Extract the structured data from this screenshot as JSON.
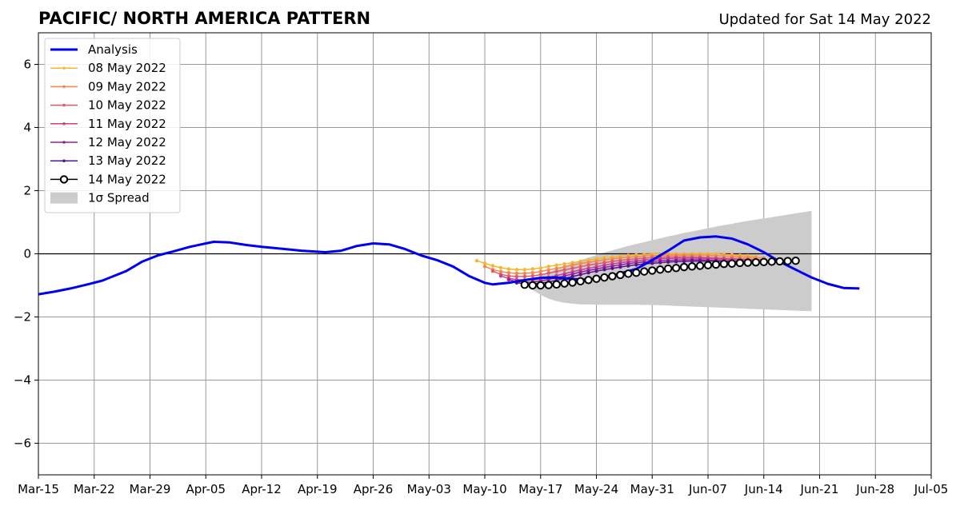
{
  "chart_data": {
    "type": "line",
    "title": "PACIFIC/ NORTH AMERICA PATTERN",
    "subtitle": "Updated for Sat 14 May 2022",
    "xlabel": "",
    "ylabel": "",
    "xlim": [
      "2022-03-15",
      "2022-07-05"
    ],
    "ylim": [
      -7,
      7
    ],
    "x_ticks": [
      "Mar-15",
      "Mar-22",
      "Mar-29",
      "Apr-05",
      "Apr-12",
      "Apr-19",
      "Apr-26",
      "May-03",
      "May-10",
      "May-17",
      "May-24",
      "May-31",
      "Jun-07",
      "Jun-14",
      "Jun-21",
      "Jun-28",
      "Jul-05"
    ],
    "y_ticks": [
      6,
      4,
      2,
      0,
      -2,
      -4,
      -6
    ],
    "y_tick_labels": [
      "6",
      "4",
      "2",
      "0",
      "−2",
      "−4",
      "−6"
    ],
    "grid": true,
    "zero_line": true,
    "legend_position": "top-left",
    "analysis": {
      "name": "Analysis",
      "color": "#0000ee",
      "points": [
        [
          "2022-03-15",
          -1.28
        ],
        [
          "2022-03-17",
          -1.2
        ],
        [
          "2022-03-19",
          -1.1
        ],
        [
          "2022-03-21",
          -0.98
        ],
        [
          "2022-03-23",
          -0.85
        ],
        [
          "2022-03-24",
          -0.75
        ],
        [
          "2022-03-26",
          -0.55
        ],
        [
          "2022-03-27",
          -0.4
        ],
        [
          "2022-03-28",
          -0.25
        ],
        [
          "2022-03-30",
          -0.05
        ],
        [
          "2022-04-01",
          0.08
        ],
        [
          "2022-04-03",
          0.22
        ],
        [
          "2022-04-05",
          0.33
        ],
        [
          "2022-04-06",
          0.38
        ],
        [
          "2022-04-08",
          0.36
        ],
        [
          "2022-04-10",
          0.28
        ],
        [
          "2022-04-12",
          0.22
        ],
        [
          "2022-04-15",
          0.15
        ],
        [
          "2022-04-17",
          0.1
        ],
        [
          "2022-04-20",
          0.05
        ],
        [
          "2022-04-22",
          0.1
        ],
        [
          "2022-04-24",
          0.25
        ],
        [
          "2022-04-26",
          0.33
        ],
        [
          "2022-04-28",
          0.3
        ],
        [
          "2022-04-30",
          0.15
        ],
        [
          "2022-05-02",
          -0.05
        ],
        [
          "2022-05-04",
          -0.2
        ],
        [
          "2022-05-06",
          -0.4
        ],
        [
          "2022-05-08",
          -0.7
        ],
        [
          "2022-05-10",
          -0.92
        ],
        [
          "2022-05-11",
          -0.97
        ],
        [
          "2022-05-13",
          -0.92
        ],
        [
          "2022-05-15",
          -0.83
        ],
        [
          "2022-05-17",
          -0.76
        ],
        [
          "2022-05-19",
          -0.75
        ],
        [
          "2022-05-21",
          -0.8
        ],
        [
          "2022-05-23",
          -0.82
        ],
        [
          "2022-05-25",
          -0.75
        ],
        [
          "2022-05-27",
          -0.62
        ],
        [
          "2022-05-29",
          -0.48
        ],
        [
          "2022-05-31",
          -0.2
        ],
        [
          "2022-06-02",
          0.1
        ],
        [
          "2022-06-04",
          0.42
        ],
        [
          "2022-06-06",
          0.52
        ],
        [
          "2022-06-08",
          0.55
        ],
        [
          "2022-06-10",
          0.48
        ],
        [
          "2022-06-12",
          0.3
        ],
        [
          "2022-06-14",
          0.05
        ],
        [
          "2022-06-16",
          -0.25
        ],
        [
          "2022-06-18",
          -0.5
        ],
        [
          "2022-06-20",
          -0.75
        ],
        [
          "2022-06-22",
          -0.95
        ],
        [
          "2022-06-24",
          -1.08
        ],
        [
          "2022-06-26",
          -1.1
        ]
      ]
    },
    "forecasts": [
      {
        "name": "08 May 2022",
        "color": "#f5b731",
        "start": "2022-05-09",
        "values": [
          -0.22,
          -0.3,
          -0.38,
          -0.44,
          -0.48,
          -0.5,
          -0.5,
          -0.48,
          -0.45,
          -0.4,
          -0.36,
          -0.32,
          -0.28,
          -0.24,
          -0.2,
          -0.16,
          -0.12,
          -0.1,
          -0.07,
          -0.05,
          -0.03,
          -0.02,
          -0.01,
          0.0,
          0.0,
          0.0,
          0.0,
          0.0,
          0.0,
          0.0,
          0.0,
          -0.02,
          -0.03,
          -0.05,
          -0.06,
          -0.08
        ]
      },
      {
        "name": "09 May 2022",
        "color": "#f3894a",
        "start": "2022-05-10",
        "values": [
          -0.4,
          -0.5,
          -0.56,
          -0.6,
          -0.62,
          -0.62,
          -0.6,
          -0.56,
          -0.51,
          -0.46,
          -0.41,
          -0.36,
          -0.31,
          -0.27,
          -0.23,
          -0.19,
          -0.16,
          -0.13,
          -0.11,
          -0.09,
          -0.07,
          -0.06,
          -0.05,
          -0.04,
          -0.04,
          -0.04,
          -0.04,
          -0.05,
          -0.05,
          -0.06,
          -0.07,
          -0.08,
          -0.1,
          -0.11,
          -0.12,
          -0.13
        ]
      },
      {
        "name": "10 May 2022",
        "color": "#e05a6e",
        "start": "2022-05-11",
        "values": [
          -0.55,
          -0.65,
          -0.7,
          -0.72,
          -0.72,
          -0.7,
          -0.66,
          -0.61,
          -0.56,
          -0.51,
          -0.46,
          -0.41,
          -0.36,
          -0.32,
          -0.28,
          -0.24,
          -0.21,
          -0.18,
          -0.16,
          -0.14,
          -0.12,
          -0.11,
          -0.1,
          -0.1,
          -0.1,
          -0.1,
          -0.11,
          -0.12,
          -0.13,
          -0.14,
          -0.15,
          -0.16,
          -0.17,
          -0.18,
          -0.19
        ]
      },
      {
        "name": "11 May 2022",
        "color": "#c2418c",
        "start": "2022-05-12",
        "values": [
          -0.7,
          -0.78,
          -0.82,
          -0.83,
          -0.82,
          -0.79,
          -0.74,
          -0.69,
          -0.63,
          -0.57,
          -0.51,
          -0.46,
          -0.41,
          -0.36,
          -0.32,
          -0.28,
          -0.25,
          -0.22,
          -0.2,
          -0.18,
          -0.16,
          -0.15,
          -0.14,
          -0.14,
          -0.14,
          -0.14,
          -0.15,
          -0.16,
          -0.17,
          -0.18,
          -0.19,
          -0.2,
          -0.21,
          -0.22
        ]
      },
      {
        "name": "12 May 2022",
        "color": "#9a1f9e",
        "start": "2022-05-13",
        "values": [
          -0.82,
          -0.88,
          -0.9,
          -0.89,
          -0.86,
          -0.81,
          -0.76,
          -0.7,
          -0.64,
          -0.58,
          -0.53,
          -0.48,
          -0.43,
          -0.39,
          -0.35,
          -0.31,
          -0.28,
          -0.26,
          -0.24,
          -0.22,
          -0.21,
          -0.2,
          -0.19,
          -0.19,
          -0.19,
          -0.2,
          -0.21,
          -0.22,
          -0.23,
          -0.24,
          -0.25,
          -0.26,
          -0.27
        ]
      },
      {
        "name": "13 May 2022",
        "color": "#5a148c",
        "start": "2022-05-14",
        "values": [
          -0.92,
          -0.95,
          -0.95,
          -0.93,
          -0.89,
          -0.84,
          -0.78,
          -0.72,
          -0.66,
          -0.6,
          -0.55,
          -0.5,
          -0.46,
          -0.42,
          -0.38,
          -0.35,
          -0.32,
          -0.3,
          -0.28,
          -0.26,
          -0.25,
          -0.24,
          -0.23,
          -0.23,
          -0.23,
          -0.23,
          -0.24,
          -0.25,
          -0.26,
          -0.27,
          -0.28,
          -0.29
        ]
      }
    ],
    "current_forecast": {
      "name": "14 May 2022",
      "color": "#000000",
      "start": "2022-05-15",
      "values": [
        -0.98,
        -1.0,
        -1.0,
        -0.99,
        -0.97,
        -0.94,
        -0.91,
        -0.87,
        -0.83,
        -0.79,
        -0.75,
        -0.71,
        -0.67,
        -0.63,
        -0.6,
        -0.56,
        -0.53,
        -0.5,
        -0.47,
        -0.45,
        -0.42,
        -0.4,
        -0.38,
        -0.36,
        -0.34,
        -0.32,
        -0.31,
        -0.29,
        -0.28,
        -0.27,
        -0.26,
        -0.25,
        -0.24,
        -0.23,
        -0.22
      ]
    },
    "spread": {
      "name": "1σ Spread",
      "color": "#cccccc",
      "start": "2022-05-15",
      "upper": [
        -1.0,
        -0.85,
        -0.7,
        -0.58,
        -0.48,
        -0.38,
        -0.29,
        -0.2,
        -0.12,
        -0.04,
        0.04,
        0.11,
        0.18,
        0.25,
        0.31,
        0.37,
        0.43,
        0.49,
        0.55,
        0.6,
        0.66,
        0.71,
        0.76,
        0.81,
        0.86,
        0.91,
        0.95,
        1.0,
        1.04,
        1.08,
        1.12,
        1.16,
        1.2,
        1.24,
        1.28,
        1.32,
        1.36
      ],
      "lower": [
        -1.0,
        -1.15,
        -1.3,
        -1.42,
        -1.5,
        -1.55,
        -1.58,
        -1.6,
        -1.6,
        -1.61,
        -1.61,
        -1.61,
        -1.61,
        -1.61,
        -1.61,
        -1.62,
        -1.62,
        -1.63,
        -1.64,
        -1.65,
        -1.66,
        -1.67,
        -1.68,
        -1.69,
        -1.7,
        -1.71,
        -1.72,
        -1.73,
        -1.74,
        -1.75,
        -1.76,
        -1.77,
        -1.78,
        -1.79,
        -1.8,
        -1.81,
        -1.82
      ]
    }
  }
}
